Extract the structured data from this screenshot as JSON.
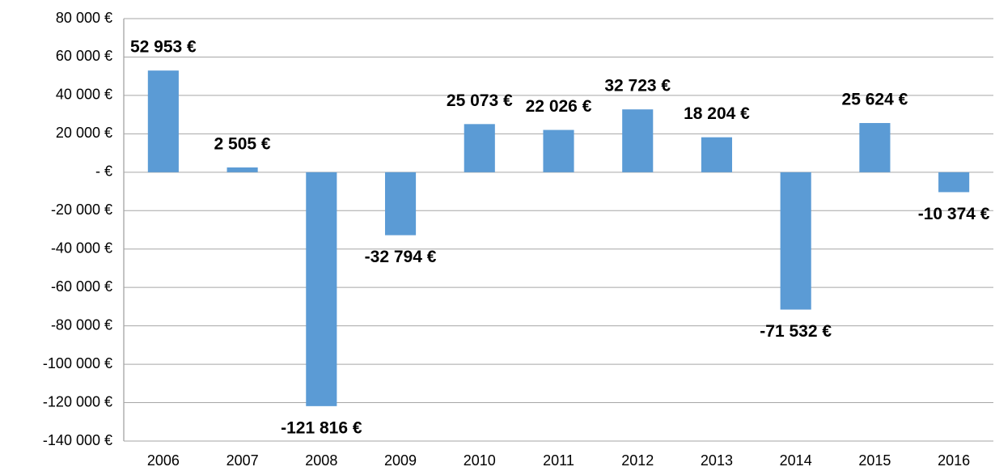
{
  "chart_data": {
    "type": "bar",
    "categories": [
      "2006",
      "2007",
      "2008",
      "2009",
      "2010",
      "2011",
      "2012",
      "2013",
      "2014",
      "2015",
      "2016"
    ],
    "values": [
      52953,
      2505,
      -121816,
      -32794,
      25073,
      22026,
      32723,
      18204,
      -71532,
      25624,
      -10374
    ],
    "value_labels": [
      "52 953 €",
      "2 505 €",
      "-121 816 €",
      "-32 794 €",
      "25 073 €",
      "22 026 €",
      "32 723 €",
      "18 204 €",
      "-71 532 €",
      "25 624 €",
      "-10 374 €"
    ],
    "color": "#5b9bd5",
    "ylim": [
      -140000,
      80000
    ],
    "yticks": [
      {
        "value": 80000,
        "label": "80 000 €"
      },
      {
        "value": 60000,
        "label": "60 000 €"
      },
      {
        "value": 40000,
        "label": "40 000 €"
      },
      {
        "value": 20000,
        "label": "20 000 €"
      },
      {
        "value": 0,
        "label": "-  €"
      },
      {
        "value": -20000,
        "label": "-20 000 €"
      },
      {
        "value": -40000,
        "label": "-40 000 €"
      },
      {
        "value": -60000,
        "label": "-60 000 €"
      },
      {
        "value": -80000,
        "label": "-80 000 €"
      },
      {
        "value": -100000,
        "label": "-100 000 €"
      },
      {
        "value": -120000,
        "label": "-120 000 €"
      },
      {
        "value": -140000,
        "label": "-140 000 €"
      }
    ],
    "grid": true
  }
}
